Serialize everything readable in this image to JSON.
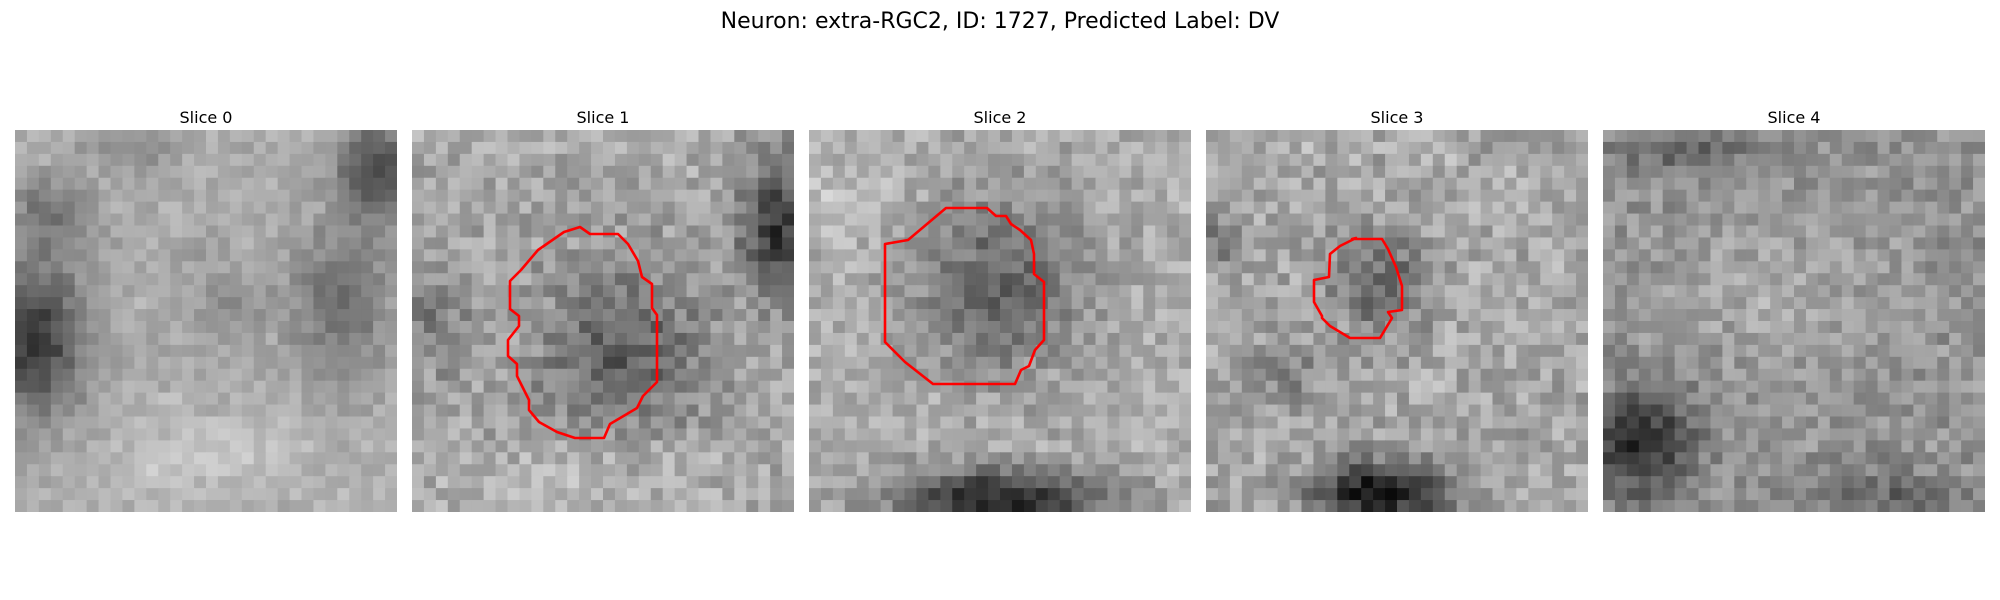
{
  "title": "Neuron: extra-RGC2, ID: 1727, Predicted Label: DV",
  "contour_color": "#ff0000",
  "colormap": "gray",
  "slices": [
    {
      "label": "Slice 0",
      "has_contour": false
    },
    {
      "label": "Slice 1",
      "has_contour": true
    },
    {
      "label": "Slice 2",
      "has_contour": true
    },
    {
      "label": "Slice 3",
      "has_contour": true
    },
    {
      "label": "Slice 4",
      "has_contour": false
    }
  ]
}
